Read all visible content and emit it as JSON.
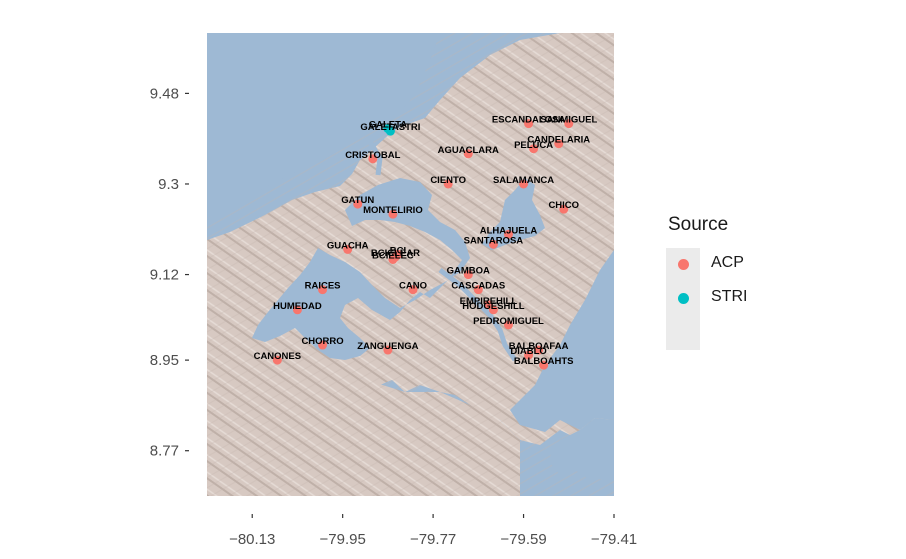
{
  "chart_data": {
    "type": "scatter",
    "title": "",
    "xlabel": "",
    "ylabel": "",
    "xlim": [
      -80.22,
      -79.41
    ],
    "ylim": [
      8.68,
      9.6
    ],
    "x_ticks": [
      -80.13,
      -79.95,
      -79.77,
      -79.59,
      -79.41
    ],
    "x_tick_labels": [
      "−80.13",
      "−79.95",
      "−79.77",
      "−79.59",
      "−79.41"
    ],
    "y_ticks": [
      9.48,
      9.3,
      9.12,
      8.95,
      8.77
    ],
    "y_tick_labels": [
      "9.48",
      "9.3",
      "9.12",
      "8.95",
      "8.77"
    ],
    "grid": false,
    "legend_position": "right",
    "background": "shaded relief basemap (land tan/gray, water blue)",
    "legend": {
      "title": "Source",
      "entries": [
        {
          "label": "ACP",
          "color": "#F8766D"
        },
        {
          "label": "STRI",
          "color": "#00BFC4"
        }
      ]
    },
    "points": [
      {
        "name": "GALETA",
        "source": "STRI",
        "x": -79.86,
        "y": 9.41
      },
      {
        "name": "GALETASTRI",
        "source": "STRI",
        "x": -79.855,
        "y": 9.405
      },
      {
        "name": "CRISTOBAL",
        "source": "ACP",
        "x": -79.89,
        "y": 9.35
      },
      {
        "name": "ESCANDALOSA",
        "source": "ACP",
        "x": -79.58,
        "y": 9.42
      },
      {
        "name": "SANMIGUEL",
        "source": "ACP",
        "x": -79.5,
        "y": 9.42
      },
      {
        "name": "CANDELARIA",
        "source": "ACP",
        "x": -79.52,
        "y": 9.38
      },
      {
        "name": "PELUCA",
        "source": "ACP",
        "x": -79.57,
        "y": 9.37
      },
      {
        "name": "AGUACLARA",
        "source": "ACP",
        "x": -79.7,
        "y": 9.36
      },
      {
        "name": "CIENTO",
        "source": "ACP",
        "x": -79.74,
        "y": 9.3
      },
      {
        "name": "SALAMANCA",
        "source": "ACP",
        "x": -79.59,
        "y": 9.3
      },
      {
        "name": "CHICO",
        "source": "ACP",
        "x": -79.51,
        "y": 9.25
      },
      {
        "name": "GATUN",
        "source": "ACP",
        "x": -79.92,
        "y": 9.26
      },
      {
        "name": "MONTELIRIO",
        "source": "ACP",
        "x": -79.85,
        "y": 9.24
      },
      {
        "name": "ALHAJUELA",
        "source": "ACP",
        "x": -79.62,
        "y": 9.2
      },
      {
        "name": "SANTAROSA",
        "source": "ACP",
        "x": -79.65,
        "y": 9.18
      },
      {
        "name": "GUACHA",
        "source": "ACP",
        "x": -79.94,
        "y": 9.17
      },
      {
        "name": "BCI",
        "source": "ACP",
        "x": -79.84,
        "y": 9.16
      },
      {
        "name": "BCICLEAR",
        "source": "ACP",
        "x": -79.845,
        "y": 9.155
      },
      {
        "name": "BCIELEC",
        "source": "ACP",
        "x": -79.85,
        "y": 9.15
      },
      {
        "name": "GAMBOA",
        "source": "ACP",
        "x": -79.7,
        "y": 9.12
      },
      {
        "name": "RAICES",
        "source": "ACP",
        "x": -79.99,
        "y": 9.09
      },
      {
        "name": "CASCADAS",
        "source": "ACP",
        "x": -79.68,
        "y": 9.09
      },
      {
        "name": "CANO",
        "source": "ACP",
        "x": -79.81,
        "y": 9.09
      },
      {
        "name": "EMPIREHILL",
        "source": "ACP",
        "x": -79.66,
        "y": 9.06
      },
      {
        "name": "HODGESHILL",
        "source": "ACP",
        "x": -79.65,
        "y": 9.05
      },
      {
        "name": "HUMEDAD",
        "source": "ACP",
        "x": -80.04,
        "y": 9.05
      },
      {
        "name": "PEDROMIGUEL",
        "source": "ACP",
        "x": -79.62,
        "y": 9.02
      },
      {
        "name": "CHORRO",
        "source": "ACP",
        "x": -79.99,
        "y": 8.98
      },
      {
        "name": "ZANGUENGA",
        "source": "ACP",
        "x": -79.86,
        "y": 8.97
      },
      {
        "name": "BALBOAFAA",
        "source": "ACP",
        "x": -79.56,
        "y": 8.97
      },
      {
        "name": "DIABLO",
        "source": "ACP",
        "x": -79.58,
        "y": 8.96
      },
      {
        "name": "CANONES",
        "source": "ACP",
        "x": -80.08,
        "y": 8.95
      },
      {
        "name": "BALBOAHTS",
        "source": "ACP",
        "x": -79.55,
        "y": 8.94
      }
    ]
  }
}
